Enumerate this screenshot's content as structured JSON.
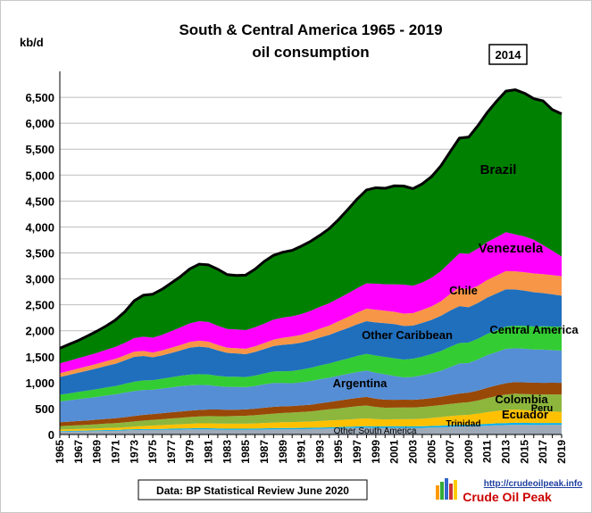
{
  "chart_data": {
    "type": "area",
    "stacked": true,
    "title": "South & Central America 1965 - 2019",
    "subtitle": "oil consumption",
    "ylabel": "kb/d",
    "xlabel": "",
    "ylim": [
      0,
      7000
    ],
    "yticks": [
      0,
      500,
      1000,
      1500,
      2000,
      2500,
      3000,
      3500,
      4000,
      4500,
      5000,
      5500,
      6000,
      6500
    ],
    "ytick_labels": [
      "0",
      "500",
      "1,000",
      "1,500",
      "2,000",
      "2,500",
      "3,000",
      "3,500",
      "4,000",
      "4,500",
      "5,000",
      "5,500",
      "6,000",
      "6,500"
    ],
    "xlim": [
      1965,
      2019
    ],
    "xtick_labels": [
      "1965",
      "1967",
      "1969",
      "1971",
      "1973",
      "1975",
      "1977",
      "1979",
      "1981",
      "1983",
      "1985",
      "1987",
      "1989",
      "1991",
      "1993",
      "1995",
      "1997",
      "1999",
      "2001",
      "2003",
      "2005",
      "2007",
      "2009",
      "2011",
      "2013",
      "2015",
      "2017",
      "2019"
    ],
    "grid": true,
    "annotation_peak": "2014",
    "source_note": "Data: BP Statistical Review June 2020",
    "watermark_url": "http://crudeoilpeak.info",
    "watermark_name": "Crude Oil Peak",
    "x": [
      1965,
      1966,
      1967,
      1968,
      1969,
      1970,
      1971,
      1972,
      1973,
      1974,
      1975,
      1976,
      1977,
      1978,
      1979,
      1980,
      1981,
      1982,
      1983,
      1984,
      1985,
      1986,
      1987,
      1988,
      1989,
      1990,
      1991,
      1992,
      1993,
      1994,
      1995,
      1996,
      1997,
      1998,
      1999,
      2000,
      2001,
      2002,
      2003,
      2004,
      2005,
      2006,
      2007,
      2008,
      2009,
      2010,
      2011,
      2012,
      2013,
      2014,
      2015,
      2016,
      2017,
      2018,
      2019
    ],
    "series": [
      {
        "name": "Other South America",
        "color": "#9eaab8",
        "values": [
          55,
          57,
          60,
          62,
          65,
          70,
          72,
          78,
          85,
          88,
          88,
          90,
          92,
          95,
          98,
          100,
          98,
          94,
          90,
          90,
          90,
          92,
          96,
          100,
          102,
          102,
          104,
          106,
          110,
          115,
          120,
          125,
          130,
          134,
          130,
          130,
          132,
          130,
          128,
          130,
          135,
          140,
          148,
          155,
          155,
          162,
          170,
          178,
          183,
          188,
          187,
          185,
          186,
          187,
          187
        ]
      },
      {
        "name": "Trinidad",
        "color": "#00b0f0",
        "values": [
          12,
          12,
          13,
          13,
          14,
          15,
          15,
          16,
          17,
          17,
          18,
          18,
          19,
          20,
          21,
          22,
          22,
          22,
          22,
          21,
          21,
          21,
          22,
          22,
          22,
          22,
          22,
          22,
          23,
          23,
          24,
          24,
          25,
          25,
          26,
          26,
          27,
          27,
          28,
          28,
          29,
          30,
          31,
          32,
          33,
          34,
          35,
          36,
          37,
          38,
          37,
          36,
          35,
          35,
          34
        ]
      },
      {
        "name": "Ecuador",
        "color": "#ffc000",
        "values": [
          30,
          32,
          34,
          36,
          38,
          40,
          42,
          45,
          50,
          58,
          65,
          72,
          78,
          82,
          88,
          92,
          94,
          95,
          96,
          97,
          98,
          100,
          104,
          108,
          112,
          115,
          118,
          122,
          128,
          132,
          135,
          140,
          145,
          150,
          140,
          135,
          135,
          138,
          140,
          145,
          155,
          165,
          175,
          182,
          190,
          205,
          225,
          240,
          250,
          255,
          245,
          235,
          225,
          220,
          215
        ]
      },
      {
        "name": "Colombia",
        "color": "#8db63c",
        "values": [
          65,
          68,
          72,
          76,
          80,
          85,
          90,
          95,
          100,
          105,
          110,
          115,
          120,
          125,
          130,
          135,
          140,
          142,
          145,
          148,
          152,
          158,
          165,
          172,
          178,
          185,
          190,
          195,
          205,
          215,
          225,
          235,
          245,
          250,
          235,
          225,
          225,
          225,
          225,
          228,
          230,
          232,
          235,
          240,
          245,
          255,
          270,
          285,
          300,
          305,
          310,
          318,
          325,
          330,
          335
        ]
      },
      {
        "name": "Peru",
        "color": "#984807",
        "values": [
          75,
          78,
          82,
          85,
          88,
          92,
          95,
          100,
          105,
          110,
          112,
          115,
          118,
          120,
          122,
          125,
          128,
          128,
          125,
          122,
          122,
          125,
          130,
          132,
          130,
          125,
          128,
          130,
          135,
          140,
          150,
          155,
          160,
          165,
          160,
          155,
          150,
          150,
          148,
          150,
          152,
          160,
          170,
          180,
          185,
          190,
          200,
          210,
          220,
          225,
          225,
          225,
          225,
          225,
          225
        ]
      },
      {
        "name": "Argentina",
        "color": "#558ed5",
        "values": [
          400,
          410,
          420,
          430,
          440,
          450,
          460,
          475,
          480,
          480,
          470,
          475,
          480,
          490,
          490,
          480,
          470,
          450,
          440,
          440,
          430,
          440,
          450,
          460,
          450,
          440,
          445,
          455,
          465,
          470,
          480,
          490,
          500,
          510,
          500,
          490,
          460,
          430,
          440,
          460,
          480,
          500,
          540,
          580,
          570,
          600,
          630,
          640,
          660,
          650,
          650,
          640,
          640,
          630,
          620
        ]
      },
      {
        "name": "Central America",
        "color": "#33cc33",
        "values": [
          130,
          135,
          140,
          145,
          150,
          155,
          160,
          170,
          180,
          185,
          185,
          190,
          195,
          200,
          205,
          210,
          205,
          200,
          195,
          195,
          195,
          200,
          210,
          220,
          225,
          235,
          245,
          255,
          265,
          275,
          285,
          295,
          310,
          320,
          330,
          335,
          340,
          345,
          350,
          360,
          370,
          380,
          390,
          395,
          395,
          400,
          410,
          420,
          430,
          435,
          440,
          445,
          450,
          455,
          460
        ]
      },
      {
        "name": "Other Caribbean",
        "color": "#1f6fbd",
        "values": [
          340,
          355,
          370,
          385,
          400,
          415,
          430,
          450,
          480,
          470,
          440,
          450,
          470,
          490,
          520,
          530,
          520,
          490,
          460,
          450,
          440,
          455,
          470,
          490,
          510,
          520,
          520,
          530,
          540,
          550,
          570,
          590,
          610,
          630,
          640,
          650,
          660,
          650,
          640,
          650,
          660,
          680,
          700,
          710,
          680,
          690,
          700,
          710,
          720,
          700,
          680,
          660,
          640,
          620,
          600
        ]
      },
      {
        "name": "Chile",
        "color": "#f79646",
        "values": [
          75,
          78,
          82,
          85,
          88,
          92,
          95,
          98,
          100,
          98,
          92,
          95,
          100,
          105,
          110,
          115,
          112,
          105,
          100,
          102,
          105,
          110,
          115,
          125,
          135,
          145,
          150,
          160,
          170,
          180,
          195,
          210,
          225,
          240,
          245,
          240,
          235,
          235,
          240,
          250,
          260,
          280,
          320,
          360,
          340,
          330,
          340,
          345,
          350,
          350,
          355,
          360,
          365,
          370,
          375
        ]
      },
      {
        "name": "Venezuela",
        "color": "#ff00ff",
        "values": [
          190,
          195,
          200,
          205,
          210,
          220,
          230,
          240,
          260,
          275,
          285,
          300,
          320,
          340,
          360,
          375,
          380,
          370,
          360,
          360,
          360,
          365,
          375,
          385,
          390,
          390,
          400,
          410,
          420,
          430,
          440,
          455,
          470,
          490,
          500,
          510,
          530,
          560,
          530,
          530,
          550,
          580,
          610,
          660,
          690,
          720,
          730,
          740,
          750,
          710,
          690,
          650,
          560,
          470,
          380
        ]
      },
      {
        "name": "Brazil",
        "color": "#008000",
        "values": [
          290,
          320,
          340,
          380,
          420,
          460,
          520,
          600,
          720,
          800,
          840,
          880,
          930,
          980,
          1050,
          1100,
          1100,
          1090,
          1050,
          1040,
          1060,
          1120,
          1200,
          1240,
          1260,
          1270,
          1310,
          1340,
          1380,
          1440,
          1520,
          1620,
          1720,
          1800,
          1850,
          1850,
          1900,
          1900,
          1870,
          1900,
          1950,
          2030,
          2130,
          2220,
          2250,
          2370,
          2500,
          2620,
          2720,
          2790,
          2760,
          2720,
          2780,
          2720,
          2750
        ]
      }
    ],
    "label_texts": {
      "brazil": "Brazil",
      "venezuela": "Venezuela",
      "chile": "Chile",
      "other_caribbean": "Other Caribbean",
      "central_america": "Central America",
      "argentina": "Argentina",
      "peru": "Peru",
      "colombia": "Colombia",
      "ecuador": "Ecuador",
      "trinidad": "Trinidad",
      "other_south_america": "Other South America"
    }
  }
}
